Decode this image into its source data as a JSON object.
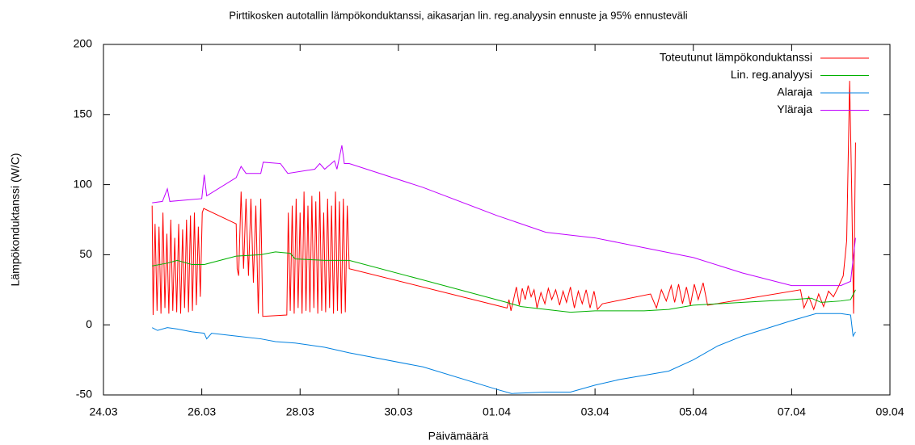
{
  "chart_data": {
    "type": "line",
    "title": "Pirttikosken autotallin lämpökonduktanssi, aikasarjan lin. reg.analyysin ennuste ja 95% ennusteväli",
    "xlabel": "Päivämäärä",
    "ylabel": "Lämpökonduktanssi (W/C)",
    "xlim": [
      0,
      16
    ],
    "xticks": [
      {
        "value": 0,
        "label": "24.03"
      },
      {
        "value": 2,
        "label": "26.03"
      },
      {
        "value": 4,
        "label": "28.03"
      },
      {
        "value": 6,
        "label": "30.03"
      },
      {
        "value": 8,
        "label": "01.04"
      },
      {
        "value": 10,
        "label": "03.04"
      },
      {
        "value": 12,
        "label": "05.04"
      },
      {
        "value": 14,
        "label": "07.04"
      },
      {
        "value": 16,
        "label": "09.04"
      }
    ],
    "ylim": [
      -50,
      200
    ],
    "yticks": [
      -50,
      0,
      50,
      100,
      150,
      200
    ],
    "legend": "top-right",
    "series": [
      {
        "name": "Toteutunut lämpökonduktanssi",
        "color": "#ff0000",
        "x": [
          0.99,
          1.01,
          1.05,
          1.09,
          1.13,
          1.17,
          1.21,
          1.25,
          1.29,
          1.33,
          1.37,
          1.41,
          1.45,
          1.49,
          1.53,
          1.57,
          1.61,
          1.65,
          1.69,
          1.73,
          1.77,
          1.81,
          1.85,
          1.89,
          1.93,
          1.97,
          2.01,
          2.04,
          2.7,
          2.72,
          2.75,
          2.8,
          2.85,
          2.9,
          2.95,
          3.0,
          3.05,
          3.1,
          3.15,
          3.2,
          3.24,
          3.73,
          3.76,
          3.8,
          3.84,
          3.88,
          3.92,
          3.96,
          4.0,
          4.04,
          4.08,
          4.12,
          4.16,
          4.2,
          4.24,
          4.28,
          4.32,
          4.36,
          4.4,
          4.44,
          4.48,
          4.52,
          4.56,
          4.6,
          4.64,
          4.68,
          4.72,
          4.76,
          4.8,
          4.84,
          4.88,
          4.92,
          4.96,
          5.0,
          8.21,
          8.25,
          8.29,
          8.33,
          8.4,
          8.46,
          8.52,
          8.58,
          8.64,
          8.7,
          8.76,
          8.82,
          8.9,
          8.98,
          9.05,
          9.12,
          9.2,
          9.28,
          9.35,
          9.42,
          9.5,
          9.58,
          9.66,
          9.74,
          9.82,
          9.9,
          9.98,
          10.05,
          10.15,
          11.13,
          11.25,
          11.35,
          11.45,
          11.55,
          11.62,
          11.7,
          11.78,
          11.86,
          11.94,
          12.02,
          12.1,
          12.2,
          12.29,
          14.18,
          14.25,
          14.35,
          14.45,
          14.55,
          14.65,
          14.75,
          14.85,
          14.95,
          15.05,
          15.12,
          15.18,
          15.22,
          15.26,
          15.3
        ],
        "values": [
          85,
          7,
          72,
          10,
          70,
          8,
          80,
          12,
          65,
          8,
          75,
          10,
          62,
          9,
          72,
          8,
          68,
          12,
          75,
          9,
          78,
          10,
          80,
          14,
          70,
          20,
          80,
          83,
          72,
          40,
          35,
          95,
          40,
          90,
          35,
          90,
          30,
          85,
          8,
          90,
          6,
          7,
          80,
          10,
          85,
          8,
          90,
          12,
          80,
          8,
          95,
          10,
          85,
          9,
          92,
          12,
          88,
          8,
          95,
          10,
          80,
          9,
          90,
          12,
          85,
          8,
          95,
          10,
          88,
          8,
          90,
          9,
          85,
          40,
          12,
          18,
          10,
          16,
          27,
          14,
          26,
          18,
          28,
          20,
          25,
          12,
          23,
          15,
          26,
          18,
          25,
          14,
          24,
          16,
          27,
          12,
          24,
          15,
          25,
          12,
          24,
          11,
          15,
          22,
          12,
          25,
          17,
          28,
          16,
          29,
          15,
          27,
          14,
          29,
          18,
          30,
          14,
          25,
          12,
          20,
          11,
          22,
          13,
          24,
          20,
          27,
          35,
          60,
          174,
          100,
          8,
          130
        ]
      },
      {
        "name": "Lin. reg.analyysi",
        "color": "#00b000",
        "x": [
          0.99,
          1.3,
          1.5,
          1.8,
          2.05,
          2.7,
          3.2,
          3.5,
          3.8,
          3.9,
          4.5,
          5.0,
          6.5,
          8.2,
          8.5,
          9.0,
          9.5,
          10.0,
          10.5,
          11.0,
          11.5,
          12.0,
          12.5,
          13.0,
          14.0,
          14.4,
          14.6,
          15.0,
          15.2,
          15.3
        ],
        "values": [
          42,
          44,
          46,
          43,
          43,
          49,
          50,
          52,
          51,
          47,
          46,
          46,
          32,
          16,
          13,
          11,
          9,
          10,
          10,
          10,
          11,
          14,
          15,
          16,
          18,
          19,
          16,
          17,
          18,
          25
        ]
      },
      {
        "name": "Alaraja",
        "color": "#0080e0",
        "x": [
          0.99,
          1.1,
          1.3,
          1.5,
          1.8,
          2.05,
          2.1,
          2.2,
          2.7,
          3.2,
          3.5,
          3.9,
          4.5,
          5.0,
          6.5,
          8.0,
          8.3,
          9.0,
          9.5,
          10.0,
          10.5,
          11.0,
          11.5,
          12.0,
          12.5,
          13.0,
          14.0,
          14.5,
          15.0,
          15.2,
          15.25,
          15.3
        ],
        "values": [
          -2,
          -4,
          -2,
          -3,
          -5,
          -6,
          -10,
          -6,
          -8,
          -10,
          -12,
          -13,
          -16,
          -20,
          -30,
          -46,
          -49,
          -48,
          -48,
          -43,
          -39,
          -36,
          -33,
          -25,
          -15,
          -8,
          3,
          8,
          8,
          7,
          -8,
          -5
        ]
      },
      {
        "name": "Yläraja",
        "color": "#c000ff",
        "x": [
          0.99,
          1.2,
          1.3,
          1.35,
          2.0,
          2.05,
          2.1,
          2.7,
          2.8,
          2.9,
          3.2,
          3.25,
          3.6,
          3.75,
          4.3,
          4.4,
          4.5,
          4.7,
          4.75,
          4.85,
          4.9,
          5.0,
          6.5,
          8.0,
          9.0,
          10.0,
          11.0,
          12.0,
          13.0,
          14.0,
          15.0,
          15.2,
          15.3
        ],
        "values": [
          87,
          88,
          97,
          88,
          90,
          107,
          92,
          105,
          113,
          108,
          108,
          116,
          115,
          108,
          111,
          115,
          111,
          117,
          111,
          128,
          115,
          115,
          98,
          78,
          66,
          62,
          55,
          48,
          37,
          28,
          28,
          31,
          62
        ]
      }
    ]
  }
}
